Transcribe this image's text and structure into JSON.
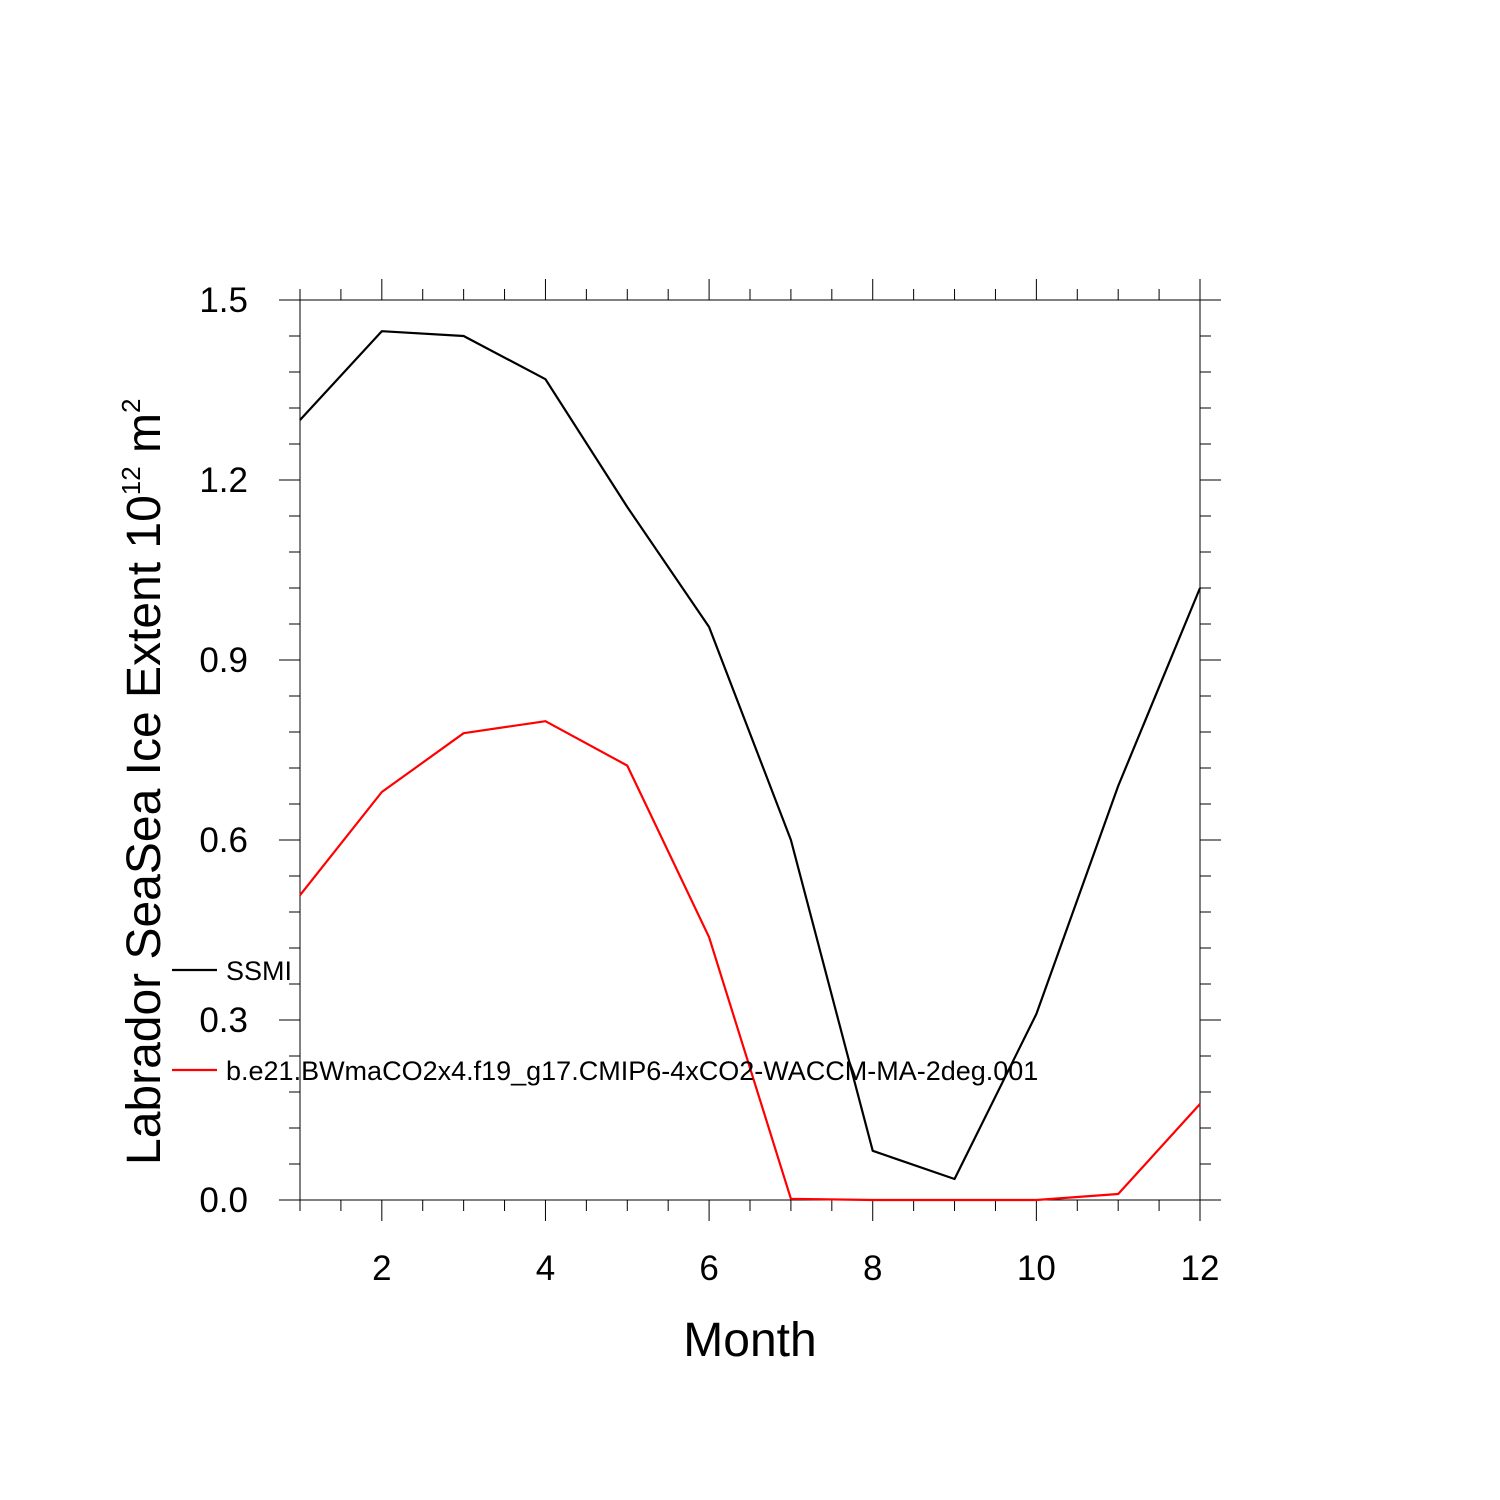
{
  "chart_data": {
    "type": "line",
    "title": "",
    "xlabel": "Month",
    "ylabel": {
      "main": "Labrador SeaSea Ice Extent 10",
      "exponent": "12",
      "unit": " m",
      "unit_exponent": "2"
    },
    "xlim": [
      1,
      12
    ],
    "ylim": [
      0,
      1.5
    ],
    "xticks": [
      2,
      4,
      6,
      8,
      10,
      12
    ],
    "xtick_labels": [
      "2",
      "4",
      "6",
      "8",
      "10",
      "12"
    ],
    "yticks": [
      0,
      0.3,
      0.6,
      0.9,
      1.2,
      1.5
    ],
    "ytick_labels": [
      "0.0",
      "0.3",
      "0.6",
      "0.9",
      "1.2",
      "1.5"
    ],
    "grid": false,
    "legend_position": "left",
    "x": [
      1,
      2,
      3,
      4,
      5,
      6,
      7,
      8,
      9,
      10,
      11,
      12
    ],
    "series": [
      {
        "name": "SSMI",
        "color": "#000000",
        "values": [
          1.3,
          1.448,
          1.44,
          1.368,
          1.155,
          0.955,
          0.6,
          0.082,
          0.035,
          0.31,
          0.69,
          1.02
        ]
      },
      {
        "name": "b.e21.BWmaCO2x4.f19_g17.CMIP6-4xCO2-WACCM-MA-2deg.001",
        "color": "#ff0000",
        "values": [
          0.508,
          0.68,
          0.778,
          0.798,
          0.724,
          0.438,
          0.002,
          0.0,
          0.0,
          0.0,
          0.01,
          0.16
        ]
      }
    ]
  }
}
